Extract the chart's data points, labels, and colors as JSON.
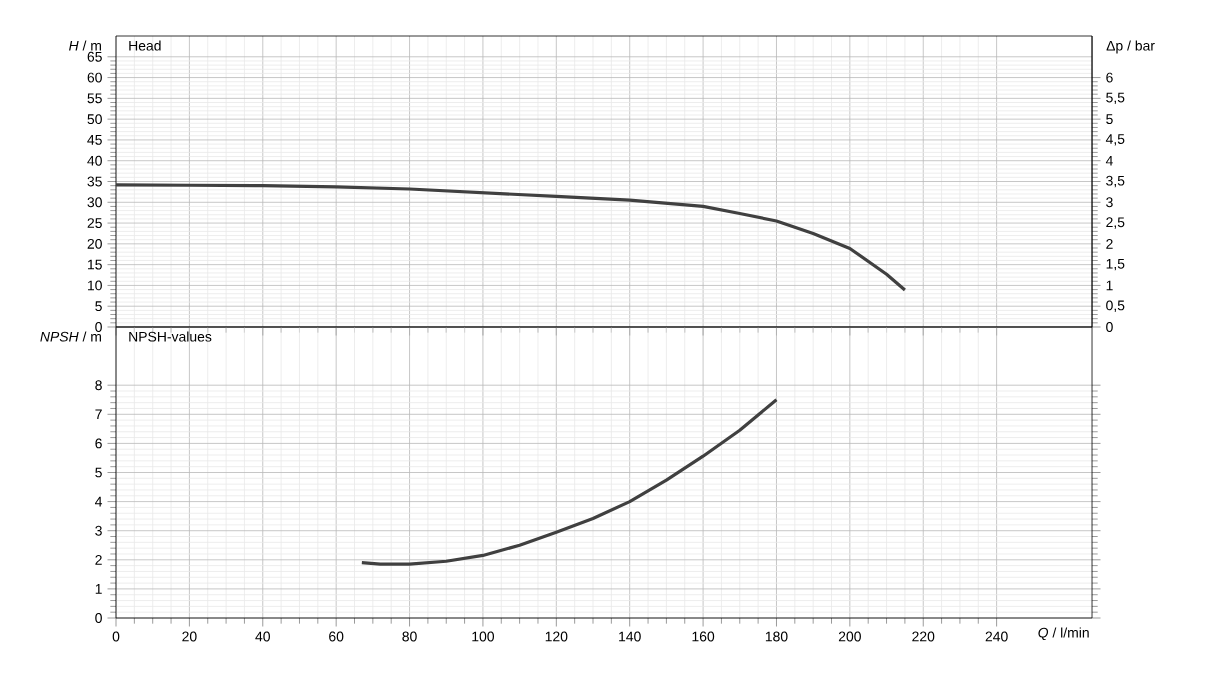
{
  "chart_data": [
    {
      "type": "line",
      "title": "Head",
      "ylabel": "*H* / m",
      "y2label": "Δp / bar",
      "color": "#404040",
      "grid": true,
      "tick_labels": "y",
      "x": [
        0,
        20,
        40,
        60,
        80,
        100,
        120,
        140,
        160,
        170,
        180,
        190,
        200,
        210,
        215
      ],
      "values": [
        34.2,
        34.1,
        34,
        33.7,
        33.2,
        32.3,
        31.4,
        30.5,
        29,
        27.3,
        25.5,
        22.5,
        18.9,
        12.7,
        8.9
      ],
      "xlim": [
        0,
        266
      ],
      "xticks": [
        0,
        20,
        40,
        60,
        80,
        100,
        120,
        140,
        160,
        180,
        200,
        220,
        240
      ],
      "ylim": [
        0,
        70
      ],
      "yticks": [
        0,
        5,
        10,
        15,
        20,
        25,
        30,
        35,
        40,
        45,
        50,
        55,
        60,
        65
      ],
      "y2lim": [
        0,
        7
      ],
      "y2ticks": [
        0,
        {
          "value": 0.5,
          "label": "0,5"
        },
        1,
        {
          "value": 1.5,
          "label": "1,5"
        },
        2,
        {
          "value": 2.5,
          "label": "2,5"
        },
        3,
        {
          "value": 3.5,
          "label": "3,5"
        },
        4,
        {
          "value": 4.5,
          "label": "4,5"
        },
        5,
        {
          "value": 5.5,
          "label": "5,5"
        },
        6
      ]
    },
    {
      "type": "line",
      "title": "NPSH-values",
      "ylabel": "*NPSH* / m",
      "xlabel": "*Q* / l/min",
      "color": "#404040",
      "grid": true,
      "x": [
        67,
        72,
        80,
        90,
        100,
        110,
        120,
        130,
        140,
        150,
        160,
        170,
        180
      ],
      "values": [
        1.9,
        1.85,
        1.85,
        1.95,
        2.15,
        2.5,
        2.95,
        3.42,
        4.0,
        4.74,
        5.56,
        6.45,
        7.5
      ],
      "xlim": [
        0,
        266
      ],
      "xticks": [
        0,
        20,
        40,
        60,
        80,
        100,
        120,
        140,
        160,
        180,
        200,
        220,
        240
      ],
      "ylim": [
        0,
        10
      ],
      "yticks": [
        0,
        1,
        2,
        3,
        4,
        5,
        6,
        7,
        8
      ]
    }
  ]
}
